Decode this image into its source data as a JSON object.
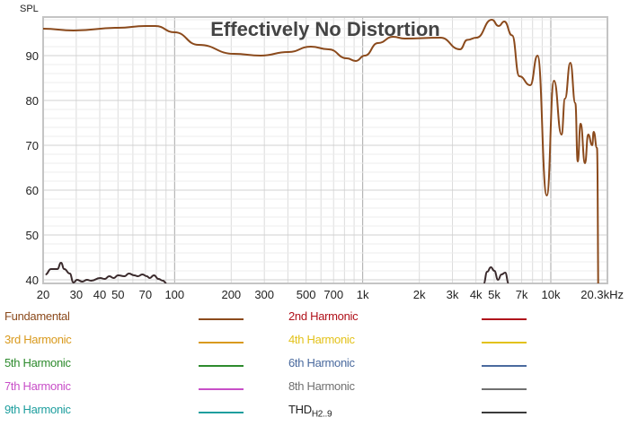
{
  "chart_data": {
    "type": "line",
    "title": "Effectively No Distortion",
    "ylabel": "SPL",
    "xlabel": "",
    "x_scale": "log",
    "xlim": [
      20,
      20300
    ],
    "ylim": [
      39.2,
      98.6
    ],
    "grid": true,
    "x_ticks": [
      20,
      30,
      40,
      50,
      70,
      100,
      200,
      300,
      500,
      700,
      1000,
      2000,
      3000,
      4000,
      5000,
      7000,
      10000
    ],
    "x_tick_labels": [
      "20",
      "30",
      "40",
      "50",
      "70",
      "100",
      "200",
      "300",
      "500",
      "700",
      "1k",
      "2k",
      "3k",
      "4k",
      "5k",
      "7k",
      "10k"
    ],
    "x_end_label": "20.3kHz",
    "y_ticks": [
      40,
      50,
      60,
      70,
      80,
      90
    ],
    "y_tick_labels": [
      "40",
      "50",
      "60",
      "70",
      "80",
      "90"
    ],
    "series": [
      {
        "name": "Fundamental",
        "color": "#8b4a1c",
        "x": [
          20,
          29,
          50,
          70,
          79,
          100,
          134,
          207,
          286,
          402,
          530,
          659,
          823,
          918,
          1025,
          1207,
          1450,
          1670,
          2587,
          3290,
          3597,
          4025,
          4860,
          5280,
          5660,
          6230,
          6800,
          7780,
          8500,
          9520,
          10400,
          11400,
          11900,
          12700,
          13500,
          13900,
          14400,
          15200,
          15800,
          16600,
          16900,
          17600,
          18000
        ],
        "y": [
          96,
          95.6,
          96.2,
          96.6,
          96.6,
          95.2,
          92.4,
          90.4,
          90,
          90.8,
          92,
          91.4,
          89.4,
          88.8,
          90,
          92.8,
          94.2,
          93.8,
          94,
          91.4,
          93.5,
          94,
          98,
          96.6,
          97.6,
          94.5,
          85.4,
          83.4,
          90,
          58.8,
          84.4,
          72.4,
          80.4,
          88.4,
          79.4,
          66.4,
          74.8,
          66,
          72.4,
          70,
          73,
          69.4,
          30
        ]
      },
      {
        "name": "THD H2..9",
        "color": "#3b2b2d",
        "x": [
          20.6,
          22,
          23.8,
          24.9,
          25.9,
          27.7,
          29,
          30.3,
          32.3,
          34.2,
          36,
          40.2,
          42.5,
          45,
          47.4,
          50.1,
          54.1,
          57.2,
          61,
          63.8,
          67.4,
          71.2,
          73.6,
          77.7,
          82,
          86.7,
          90.6
        ],
        "y": [
          41.2,
          42.4,
          42.4,
          43.8,
          42.4,
          41.4,
          39.4,
          40,
          39.6,
          40,
          39.8,
          40.4,
          40.2,
          40.8,
          40.4,
          41,
          40.8,
          41.4,
          41,
          40.8,
          41.2,
          40.8,
          40.4,
          41,
          40.2,
          39.8,
          39.2
        ]
      },
      {
        "name": "THD H2..9",
        "color": "#3b2b2d",
        "x": [
          4395,
          4590,
          4800,
          5010,
          5240,
          5470,
          5720,
          5970
        ],
        "y": [
          39.2,
          41.8,
          42.8,
          42,
          40,
          41.2,
          41.6,
          39.2
        ]
      }
    ]
  },
  "legend": [
    {
      "label": "Fundamental",
      "color": "#8b4a1c"
    },
    {
      "label": "2nd Harmonic",
      "color": "#b0121b"
    },
    {
      "label": "3rd Harmonic",
      "color": "#d99a1e"
    },
    {
      "label": "4th Harmonic",
      "color": "#e3c21a"
    },
    {
      "label": "5th Harmonic",
      "color": "#2e8b2e"
    },
    {
      "label": "6th Harmonic",
      "color": "#4a6a9e"
    },
    {
      "label": "7th Harmonic",
      "color": "#c84fc8"
    },
    {
      "label": "8th Harmonic",
      "color": "#707070"
    },
    {
      "label": "9th Harmonic",
      "color": "#1e9e9e"
    },
    {
      "label": "THD",
      "sub": "H2..9",
      "color": "#3b3b3b"
    }
  ]
}
